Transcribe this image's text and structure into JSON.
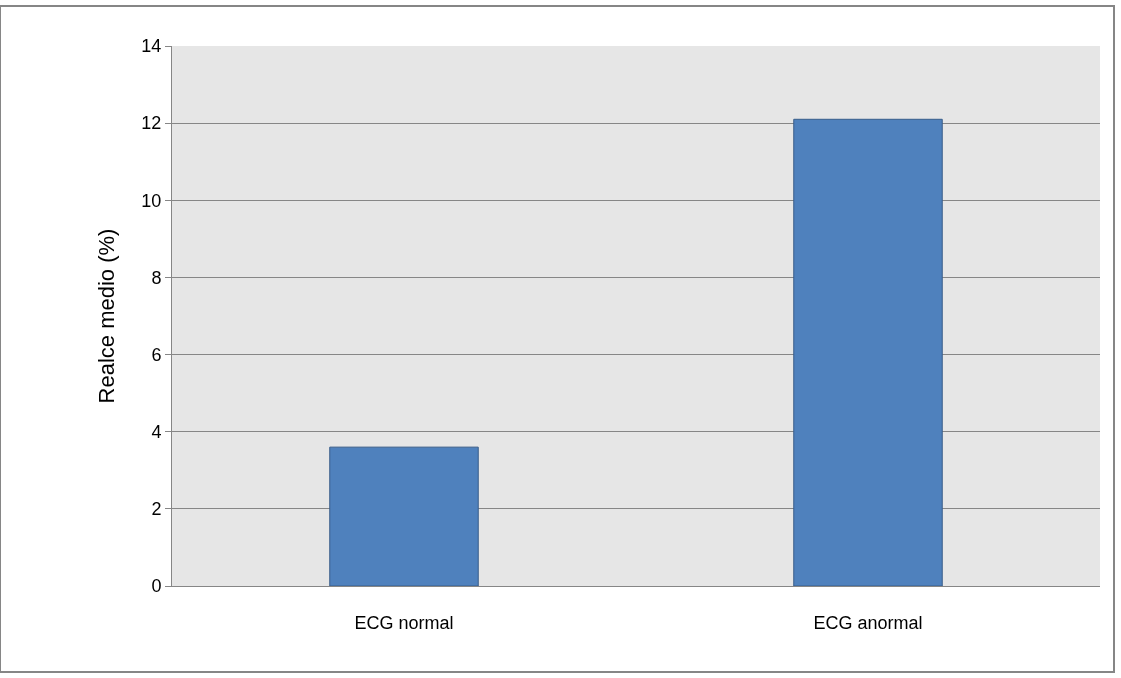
{
  "chart_data": {
    "type": "bar",
    "ylabel": "Realce medio (%)",
    "categories": [
      "ECG normal",
      "ECG anormal"
    ],
    "values": [
      3.6,
      12.1
    ],
    "color": "#4f81bd",
    "ylim": [
      0,
      14
    ],
    "yticks": [
      0,
      2,
      4,
      6,
      8,
      10,
      12,
      14
    ],
    "grid": "y"
  }
}
